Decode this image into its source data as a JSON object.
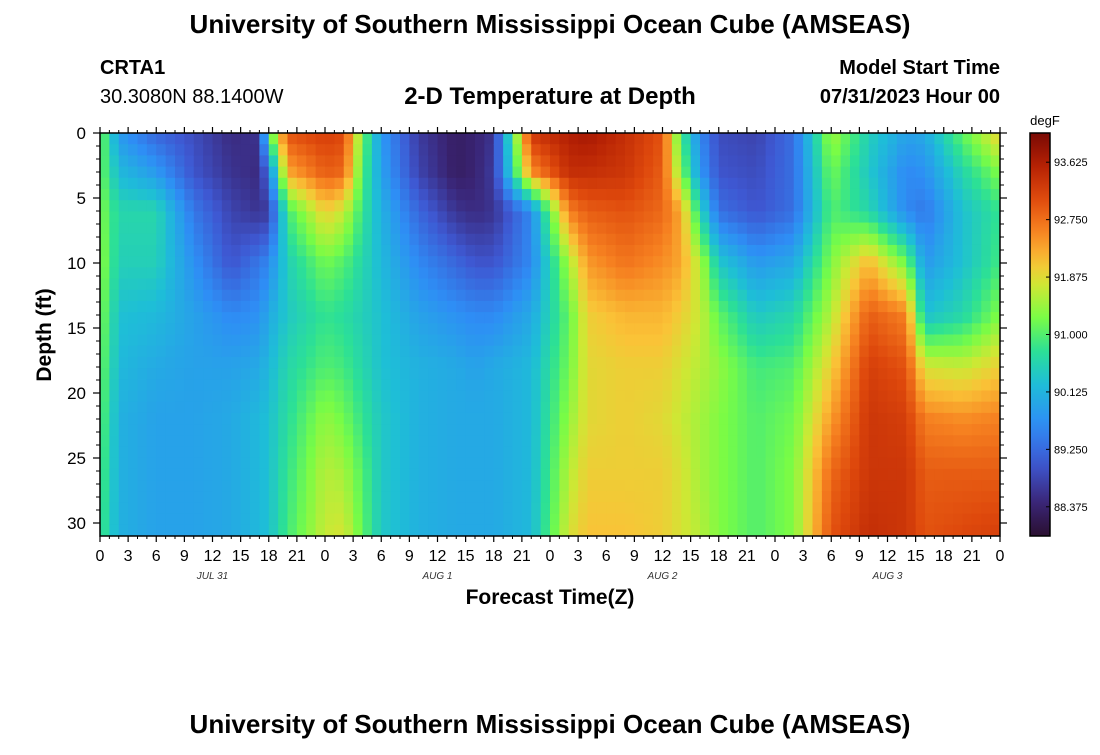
{
  "header": {
    "title": "University of Southern Mississippi Ocean Cube (AMSEAS)",
    "station": "CRTA1",
    "coords": "30.3080N  88.1400W",
    "plot_title": "2-D Temperature at Depth",
    "model_start_label": "Model Start Time",
    "model_start_value": "07/31/2023 Hour 00"
  },
  "footer": {
    "title": "University of Southern Mississippi Ocean Cube (AMSEAS)"
  },
  "chart_data": {
    "type": "heatmap",
    "title": "2-D Temperature at Depth",
    "xlabel": "Forecast Time(Z)",
    "ylabel": "Depth (ft)",
    "x_unit": "hours from 07/31/2023 00Z",
    "xlim": [
      0,
      96
    ],
    "ylim": [
      31,
      0
    ],
    "x_tick_labels": [
      "0",
      "3",
      "6",
      "9",
      "12",
      "15",
      "18",
      "21",
      "0",
      "3",
      "6",
      "9",
      "12",
      "15",
      "18",
      "21",
      "0",
      "3",
      "6",
      "9",
      "12",
      "15",
      "18",
      "21",
      "0",
      "3",
      "6",
      "9",
      "12",
      "15",
      "18",
      "21",
      "0"
    ],
    "y_ticks": [
      0,
      5,
      10,
      15,
      20,
      25,
      30
    ],
    "day_labels": [
      {
        "label": "JUL 31",
        "hour": 12
      },
      {
        "label": "AUG 1",
        "hour": 36
      },
      {
        "label": "AUG 2",
        "hour": 60
      },
      {
        "label": "AUG 3",
        "hour": 84
      }
    ],
    "colorbar": {
      "unit": "degF",
      "min": 87.93,
      "max": 94.07,
      "labels": [
        "93.625",
        "92.750",
        "91.875",
        "91.000",
        "90.125",
        "89.250",
        "88.375"
      ]
    },
    "depths_ft": [
      0,
      3,
      6,
      10,
      14,
      18,
      22,
      26,
      31
    ],
    "hours": [
      0,
      2,
      6,
      10,
      14,
      17,
      18,
      20,
      24,
      26,
      28,
      30,
      34,
      38,
      40,
      42,
      46,
      50,
      52,
      56,
      60,
      62,
      64,
      66,
      70,
      74,
      78,
      82,
      86,
      88,
      92,
      96
    ],
    "temps_degF": [
      [
        91.3,
        91.2,
        91.3,
        91.4,
        91.3,
        91.2,
        91.1,
        91.0,
        90.9
      ],
      [
        89.8,
        90.2,
        90.6,
        90.5,
        90.3,
        90.2,
        90.1,
        90.1,
        90.1
      ],
      [
        89.2,
        89.8,
        90.6,
        90.5,
        90.2,
        90.0,
        89.9,
        89.9,
        89.9
      ],
      [
        88.9,
        89.0,
        89.4,
        89.7,
        89.9,
        89.9,
        89.9,
        89.9,
        89.9
      ],
      [
        88.5,
        88.6,
        88.8,
        89.0,
        89.6,
        89.9,
        90.0,
        90.0,
        90.0
      ],
      [
        88.6,
        88.5,
        88.6,
        89.4,
        89.7,
        90.0,
        90.2,
        90.2,
        90.2
      ],
      [
        91.0,
        89.4,
        88.7,
        89.6,
        90.0,
        90.2,
        90.3,
        90.3,
        90.3
      ],
      [
        93.0,
        92.3,
        90.9,
        90.5,
        90.4,
        90.6,
        90.7,
        90.8,
        90.9
      ],
      [
        93.2,
        92.9,
        92.0,
        91.2,
        90.8,
        91.0,
        91.4,
        91.6,
        91.7
      ],
      [
        93.1,
        92.8,
        91.7,
        91.0,
        90.7,
        90.9,
        91.2,
        91.5,
        91.8
      ],
      [
        91.2,
        91.0,
        90.8,
        90.6,
        90.5,
        90.6,
        90.8,
        91.0,
        91.1
      ],
      [
        89.8,
        89.9,
        90.1,
        90.2,
        90.3,
        90.3,
        90.4,
        90.4,
        90.4
      ],
      [
        88.7,
        88.8,
        89.2,
        89.6,
        89.9,
        90.1,
        90.1,
        90.1,
        90.1
      ],
      [
        88.3,
        88.3,
        88.6,
        89.2,
        89.7,
        90.0,
        90.0,
        90.0,
        90.0
      ],
      [
        88.4,
        88.4,
        88.5,
        89.0,
        89.6,
        89.9,
        90.0,
        90.0,
        90.0
      ],
      [
        88.6,
        88.7,
        88.6,
        89.0,
        89.6,
        90.0,
        90.0,
        90.0,
        90.0
      ],
      [
        93.3,
        92.5,
        89.6,
        89.6,
        90.0,
        90.2,
        90.2,
        90.2,
        90.2
      ],
      [
        93.6,
        93.4,
        92.6,
        91.5,
        91.1,
        91.2,
        91.4,
        91.6,
        91.8
      ],
      [
        93.7,
        93.4,
        92.9,
        92.4,
        92.0,
        91.9,
        91.9,
        92.0,
        92.1
      ],
      [
        93.4,
        93.3,
        93.0,
        92.7,
        92.2,
        92.0,
        92.0,
        92.0,
        92.1
      ],
      [
        93.0,
        92.9,
        92.8,
        92.5,
        92.2,
        92.0,
        91.9,
        92.0,
        92.0
      ],
      [
        90.9,
        91.3,
        92.3,
        92.3,
        92.0,
        91.8,
        91.7,
        91.8,
        91.8
      ],
      [
        89.6,
        89.8,
        90.6,
        91.6,
        91.7,
        91.6,
        91.5,
        91.5,
        91.6
      ],
      [
        88.9,
        89.0,
        89.3,
        90.4,
        91.1,
        91.4,
        91.3,
        91.3,
        91.3
      ],
      [
        88.8,
        88.9,
        89.0,
        89.8,
        90.4,
        90.9,
        91.0,
        91.0,
        91.0
      ],
      [
        89.3,
        89.3,
        89.3,
        90.0,
        90.6,
        91.0,
        91.2,
        91.3,
        91.3
      ],
      [
        91.5,
        91.2,
        91.0,
        91.3,
        91.6,
        92.0,
        92.4,
        92.8,
        93.0
      ],
      [
        90.5,
        90.4,
        90.6,
        92.2,
        92.9,
        93.2,
        93.3,
        93.3,
        93.4
      ],
      [
        89.9,
        89.6,
        89.6,
        91.2,
        92.6,
        93.0,
        93.2,
        93.3,
        93.3
      ],
      [
        90.0,
        89.7,
        89.4,
        89.8,
        90.3,
        91.8,
        92.6,
        92.9,
        93.0
      ],
      [
        91.1,
        90.6,
        90.3,
        90.3,
        90.6,
        91.7,
        92.5,
        92.9,
        93.1
      ],
      [
        92.0,
        91.3,
        90.8,
        90.9,
        91.3,
        92.0,
        92.6,
        92.9,
        93.2
      ]
    ]
  }
}
